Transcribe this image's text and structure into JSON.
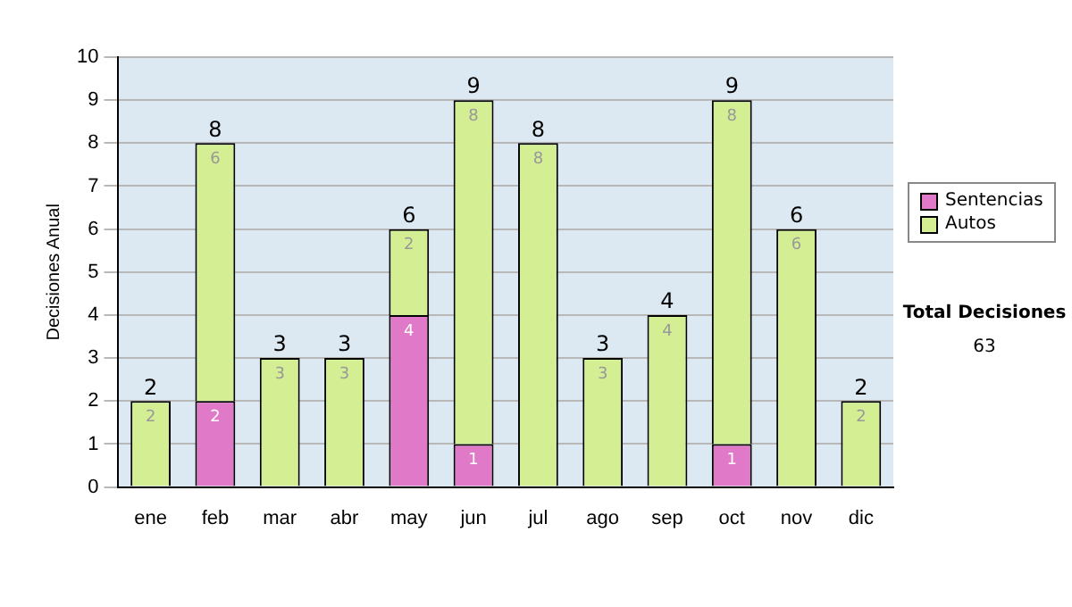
{
  "chart_data": {
    "type": "bar",
    "stacked": true,
    "ylabel": "Decisiones Anual",
    "categories": [
      "ene",
      "feb",
      "mar",
      "abr",
      "may",
      "jun",
      "jul",
      "ago",
      "sep",
      "oct",
      "nov",
      "dic"
    ],
    "series": [
      {
        "name": "Sentencias",
        "color": "#e07ac8",
        "values": [
          null,
          2,
          null,
          null,
          4,
          1,
          null,
          null,
          null,
          1,
          null,
          null
        ]
      },
      {
        "name": "Autos",
        "color": "#d4ee94",
        "values": [
          2,
          6,
          3,
          3,
          2,
          8,
          8,
          3,
          4,
          8,
          6,
          2
        ]
      }
    ],
    "totals": [
      "2",
      "8",
      "3",
      "3",
      "6",
      "9",
      "8",
      "3",
      "4",
      "9",
      "6",
      "2"
    ],
    "data_labels": true,
    "ylim": [
      0,
      10
    ],
    "yticks": [
      0,
      1,
      2,
      3,
      4,
      5,
      6,
      7,
      8,
      9,
      10
    ],
    "grid": "y",
    "legend": "right",
    "annotations": [
      "Total Decisiones",
      "63"
    ]
  }
}
